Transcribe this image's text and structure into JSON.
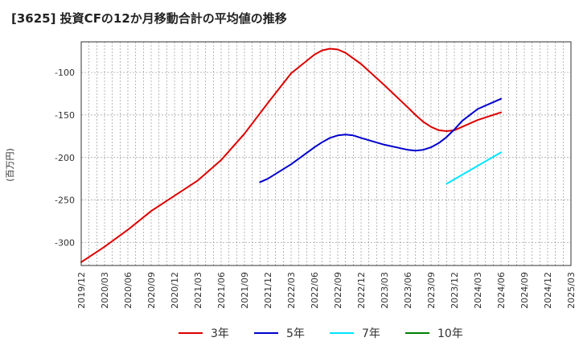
{
  "chart_data": {
    "type": "line",
    "title": "[3625]  投資CFの12か月移動合計の平均値の推移",
    "ylabel": "(百万円)",
    "xlabel": "",
    "ylim": [
      -327,
      -64
    ],
    "y_ticks": [
      -100,
      -150,
      -200,
      -250,
      -300
    ],
    "x_ticks": [
      "2019/12",
      "2020/03",
      "2020/06",
      "2020/09",
      "2020/12",
      "2021/03",
      "2021/06",
      "2021/09",
      "2021/12",
      "2022/03",
      "2022/06",
      "2022/09",
      "2022/12",
      "2023/03",
      "2023/06",
      "2023/09",
      "2023/12",
      "2024/03",
      "2024/06",
      "2024/09",
      "2024/12",
      "2025/03"
    ],
    "grid": true,
    "legend_position": "bottom",
    "series": [
      {
        "name": "3年",
        "color": "#dd0000",
        "points": [
          [
            "2019/12",
            -323
          ],
          [
            "2020/03",
            -305
          ],
          [
            "2020/06",
            -285
          ],
          [
            "2020/09",
            -263
          ],
          [
            "2020/12",
            -245
          ],
          [
            "2021/03",
            -227
          ],
          [
            "2021/06",
            -203
          ],
          [
            "2021/09",
            -172
          ],
          [
            "2021/12",
            -136
          ],
          [
            "2022/03",
            -101
          ],
          [
            "2022/06",
            -79
          ],
          [
            "2022/07",
            -74
          ],
          [
            "2022/08",
            -72
          ],
          [
            "2022/09",
            -73
          ],
          [
            "2022/10",
            -77
          ],
          [
            "2022/12",
            -90
          ],
          [
            "2023/03",
            -115
          ],
          [
            "2023/06",
            -141
          ],
          [
            "2023/07",
            -150
          ],
          [
            "2023/08",
            -158
          ],
          [
            "2023/09",
            -164
          ],
          [
            "2023/10",
            -168
          ],
          [
            "2023/11",
            -169
          ],
          [
            "2023/12",
            -168
          ],
          [
            "2024/01",
            -164
          ],
          [
            "2024/03",
            -156
          ],
          [
            "2024/06",
            -147
          ]
        ]
      },
      {
        "name": "5年",
        "color": "#0000cc",
        "points": [
          [
            "2021/11",
            -229
          ],
          [
            "2021/12",
            -225
          ],
          [
            "2022/03",
            -208
          ],
          [
            "2022/06",
            -188
          ],
          [
            "2022/07",
            -182
          ],
          [
            "2022/08",
            -177
          ],
          [
            "2022/09",
            -174
          ],
          [
            "2022/10",
            -173
          ],
          [
            "2022/11",
            -174
          ],
          [
            "2022/12",
            -177
          ],
          [
            "2023/03",
            -185
          ],
          [
            "2023/06",
            -191
          ],
          [
            "2023/07",
            -192
          ],
          [
            "2023/08",
            -191
          ],
          [
            "2023/09",
            -188
          ],
          [
            "2023/10",
            -183
          ],
          [
            "2023/11",
            -176
          ],
          [
            "2023/12",
            -167
          ],
          [
            "2024/01",
            -157
          ],
          [
            "2024/03",
            -143
          ],
          [
            "2024/06",
            -131
          ]
        ]
      },
      {
        "name": "7年",
        "color": "#00e5ff",
        "points": [
          [
            "2023/11",
            -231
          ],
          [
            "2024/06",
            -194
          ]
        ]
      },
      {
        "name": "10年",
        "color": "#008000",
        "points": []
      }
    ]
  }
}
